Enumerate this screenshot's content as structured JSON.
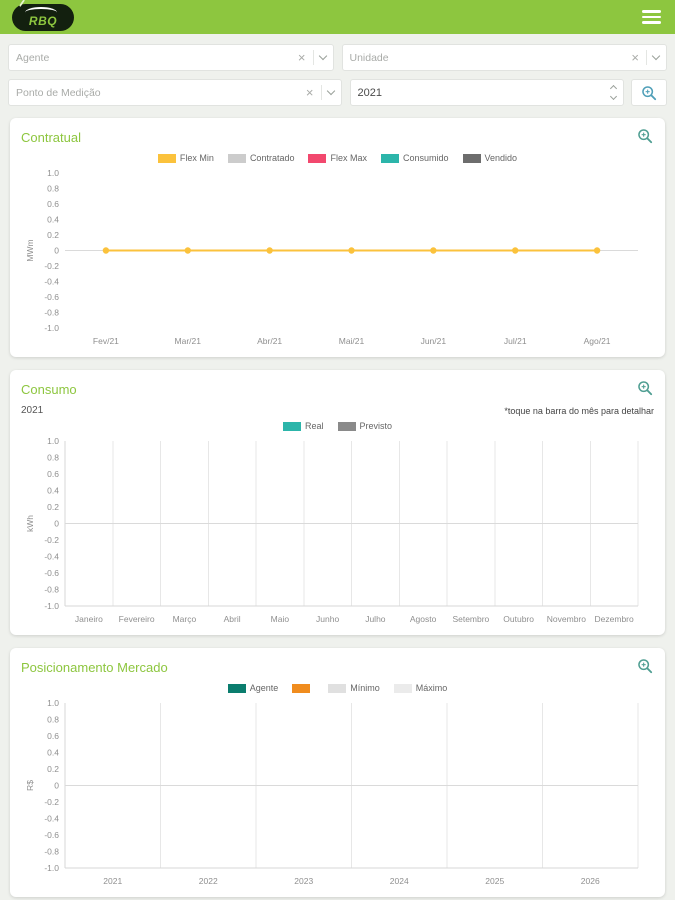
{
  "header": {
    "logo_text": "RBQ"
  },
  "filters": {
    "agente_placeholder": "Agente",
    "unidade_placeholder": "Unidade",
    "ponto_placeholder": "Ponto de Medição",
    "year_value": "2021",
    "clear_icon": "×"
  },
  "colors": {
    "brand_green": "#8dc63f",
    "magnifier_card": "#4f9e92",
    "magnifier_filter": "#4f9fb8"
  },
  "chart_data": [
    {
      "id": "contratual",
      "type": "line",
      "title": "Contratual",
      "ylabel": "MWm",
      "ylim": [
        -1.0,
        1.0
      ],
      "ytick_step": 0.2,
      "grid": false,
      "axes": false,
      "legend_position": "top",
      "categories": [
        "Fev/21",
        "Mar/21",
        "Abr/21",
        "Mai/21",
        "Jun/21",
        "Jul/21",
        "Ago/21"
      ],
      "series": [
        {
          "name": "Flex Min",
          "color": "#fbc23c",
          "values": [
            0,
            0,
            0,
            0,
            0,
            0,
            0
          ],
          "markers": true
        },
        {
          "name": "Contratado",
          "color": "#cccccc",
          "values": []
        },
        {
          "name": "Flex Max",
          "color": "#f2486e",
          "values": []
        },
        {
          "name": "Consumido",
          "color": "#2cb5aa",
          "values": []
        },
        {
          "name": "Vendido",
          "color": "#6d6d6d",
          "values": []
        }
      ]
    },
    {
      "id": "consumo",
      "type": "bar",
      "title": "Consumo",
      "year_label": "2021",
      "note": "*toque na barra do mês para detalhar",
      "ylabel": "kWh",
      "ylim": [
        -1.0,
        1.0
      ],
      "ytick_step": 0.2,
      "grid": true,
      "axes": true,
      "legend_position": "top",
      "categories": [
        "Janeiro",
        "Fevereiro",
        "Março",
        "Abril",
        "Maio",
        "Junho",
        "Julho",
        "Agosto",
        "Setembro",
        "Outubro",
        "Novembro",
        "Dezembro"
      ],
      "series": [
        {
          "name": "Real",
          "color": "#2cb5aa",
          "values": []
        },
        {
          "name": "Previsto",
          "color": "#8a8a8a",
          "values": []
        }
      ]
    },
    {
      "id": "posicionamento-mercado",
      "type": "line",
      "title": "Posicionamento Mercado",
      "ylabel": "R$",
      "ylim": [
        -1.0,
        1.0
      ],
      "ytick_step": 0.2,
      "grid": true,
      "axes": true,
      "legend_position": "top",
      "categories": [
        "2021",
        "2022",
        "2023",
        "2024",
        "2025",
        "2026"
      ],
      "series": [
        {
          "name": "Agente",
          "color": "#0b7d6e",
          "values": []
        },
        {
          "name": "",
          "color": "#f08c1e",
          "values": []
        },
        {
          "name": "Mínimo",
          "color": "#e0e0e0",
          "values": []
        },
        {
          "name": "Máximo",
          "color": "#ebebeb",
          "values": []
        }
      ]
    }
  ]
}
